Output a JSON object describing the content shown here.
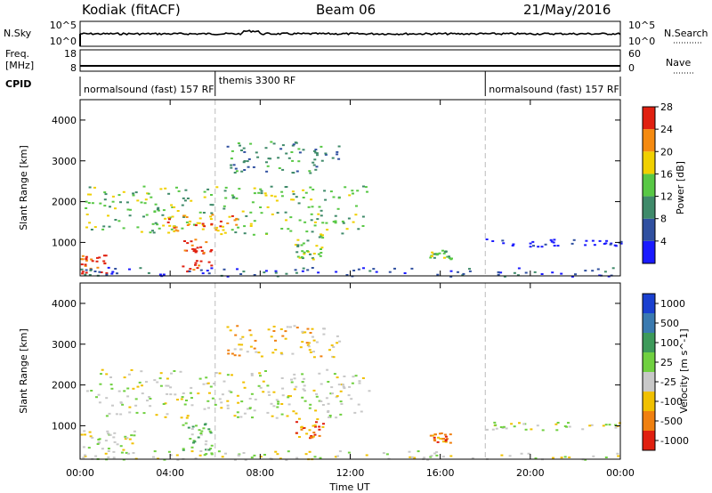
{
  "header": {
    "station": "Kodiak (fitACF)",
    "beam": "Beam 06",
    "date": "21/May/2016"
  },
  "strip": {
    "nsky_label": "N.Sky",
    "nsky_ticks": [
      "10^5",
      "10^0"
    ],
    "nsearch_label": "N.Search",
    "nsearch_ticks": [
      "10^5",
      "10^0"
    ],
    "freq_label_1": "Freq.",
    "freq_label_2": "[MHz]",
    "freq_ticks": [
      "18",
      "8"
    ],
    "nave_label": "Nave",
    "nave_ticks": [
      "60",
      "0"
    ],
    "cpid_label": "CPID",
    "modes": [
      {
        "name": "normalsound (fast) 157 RF",
        "start": 0
      },
      {
        "name": "themis 3300 RF",
        "start": 6
      },
      {
        "name": "normalsound (fast) 157 RF",
        "start": 18
      }
    ]
  },
  "axes": {
    "xlabel": "Time UT",
    "ylabel": "Slant Range [km]",
    "xticks": [
      "00:00",
      "04:00",
      "08:00",
      "12:00",
      "16:00",
      "20:00",
      "00:00"
    ],
    "yticks": [
      "1000",
      "2000",
      "3000",
      "4000"
    ]
  },
  "chart_data": [
    {
      "type": "heatmap",
      "title": "Power",
      "colorbar_label": "Power [dB]",
      "colorbar_ticks": [
        "4",
        "8",
        "12",
        "16",
        "20",
        "24",
        "28"
      ],
      "colors": [
        "#1a1aff",
        "#3050a0",
        "#3f8a6a",
        "#58c845",
        "#f0d000",
        "#f58a10",
        "#e02010"
      ],
      "xlim": [
        0,
        24
      ],
      "ylim": [
        180,
        4500
      ],
      "regions": [
        {
          "t0": 0.2,
          "t1": 12.8,
          "r0": 1200,
          "r1": 2400,
          "level": 3
        },
        {
          "t0": 3.5,
          "t1": 7.0,
          "r0": 1300,
          "r1": 1700,
          "level": 5
        },
        {
          "t0": 0.0,
          "t1": 1.2,
          "r0": 250,
          "r1": 700,
          "level": 6
        },
        {
          "t0": 4.5,
          "t1": 5.8,
          "r0": 300,
          "r1": 1100,
          "level": 6
        },
        {
          "t0": 6.5,
          "t1": 11.5,
          "r0": 2700,
          "r1": 3500,
          "level": 2
        },
        {
          "t0": 9.5,
          "t1": 10.8,
          "r0": 600,
          "r1": 1200,
          "level": 3
        },
        {
          "t0": 15.5,
          "t1": 16.5,
          "r0": 600,
          "r1": 850,
          "level": 3
        },
        {
          "t0": 0.0,
          "t1": 24.0,
          "r0": 180,
          "r1": 400,
          "level": 1
        },
        {
          "t0": 18.0,
          "t1": 24.0,
          "r0": 900,
          "r1": 1100,
          "level": 0
        }
      ]
    },
    {
      "type": "heatmap",
      "title": "Velocity",
      "colorbar_label": "Velocity [m s^-1]",
      "colorbar_ticks": [
        "1000",
        "500",
        "100",
        "25",
        "-25",
        "-100",
        "-500",
        "-1000"
      ],
      "colors": [
        "#1a40d0",
        "#3a7ab0",
        "#3d9a5a",
        "#70d040",
        "#c8c8c8",
        "#f0c000",
        "#f08010",
        "#e02010"
      ],
      "xlim": [
        0,
        24
      ],
      "ylim": [
        180,
        4500
      ],
      "regions": [
        {
          "t0": 0.2,
          "t1": 12.8,
          "r0": 1200,
          "r1": 2400,
          "level": 4
        },
        {
          "t0": 0.0,
          "t1": 2.5,
          "r0": 200,
          "r1": 900,
          "level": 4
        },
        {
          "t0": 4.5,
          "t1": 5.8,
          "r0": 300,
          "r1": 1100,
          "level": 3
        },
        {
          "t0": 6.5,
          "t1": 11.5,
          "r0": 2700,
          "r1": 3500,
          "level": 5
        },
        {
          "t0": 9.5,
          "t1": 10.8,
          "r0": 700,
          "r1": 1200,
          "level": 6
        },
        {
          "t0": 15.5,
          "t1": 16.5,
          "r0": 600,
          "r1": 850,
          "level": 6
        },
        {
          "t0": 0.0,
          "t1": 24.0,
          "r0": 180,
          "r1": 400,
          "level": 4
        },
        {
          "t0": 18.0,
          "t1": 24.0,
          "r0": 900,
          "r1": 1100,
          "level": 4
        }
      ]
    }
  ]
}
